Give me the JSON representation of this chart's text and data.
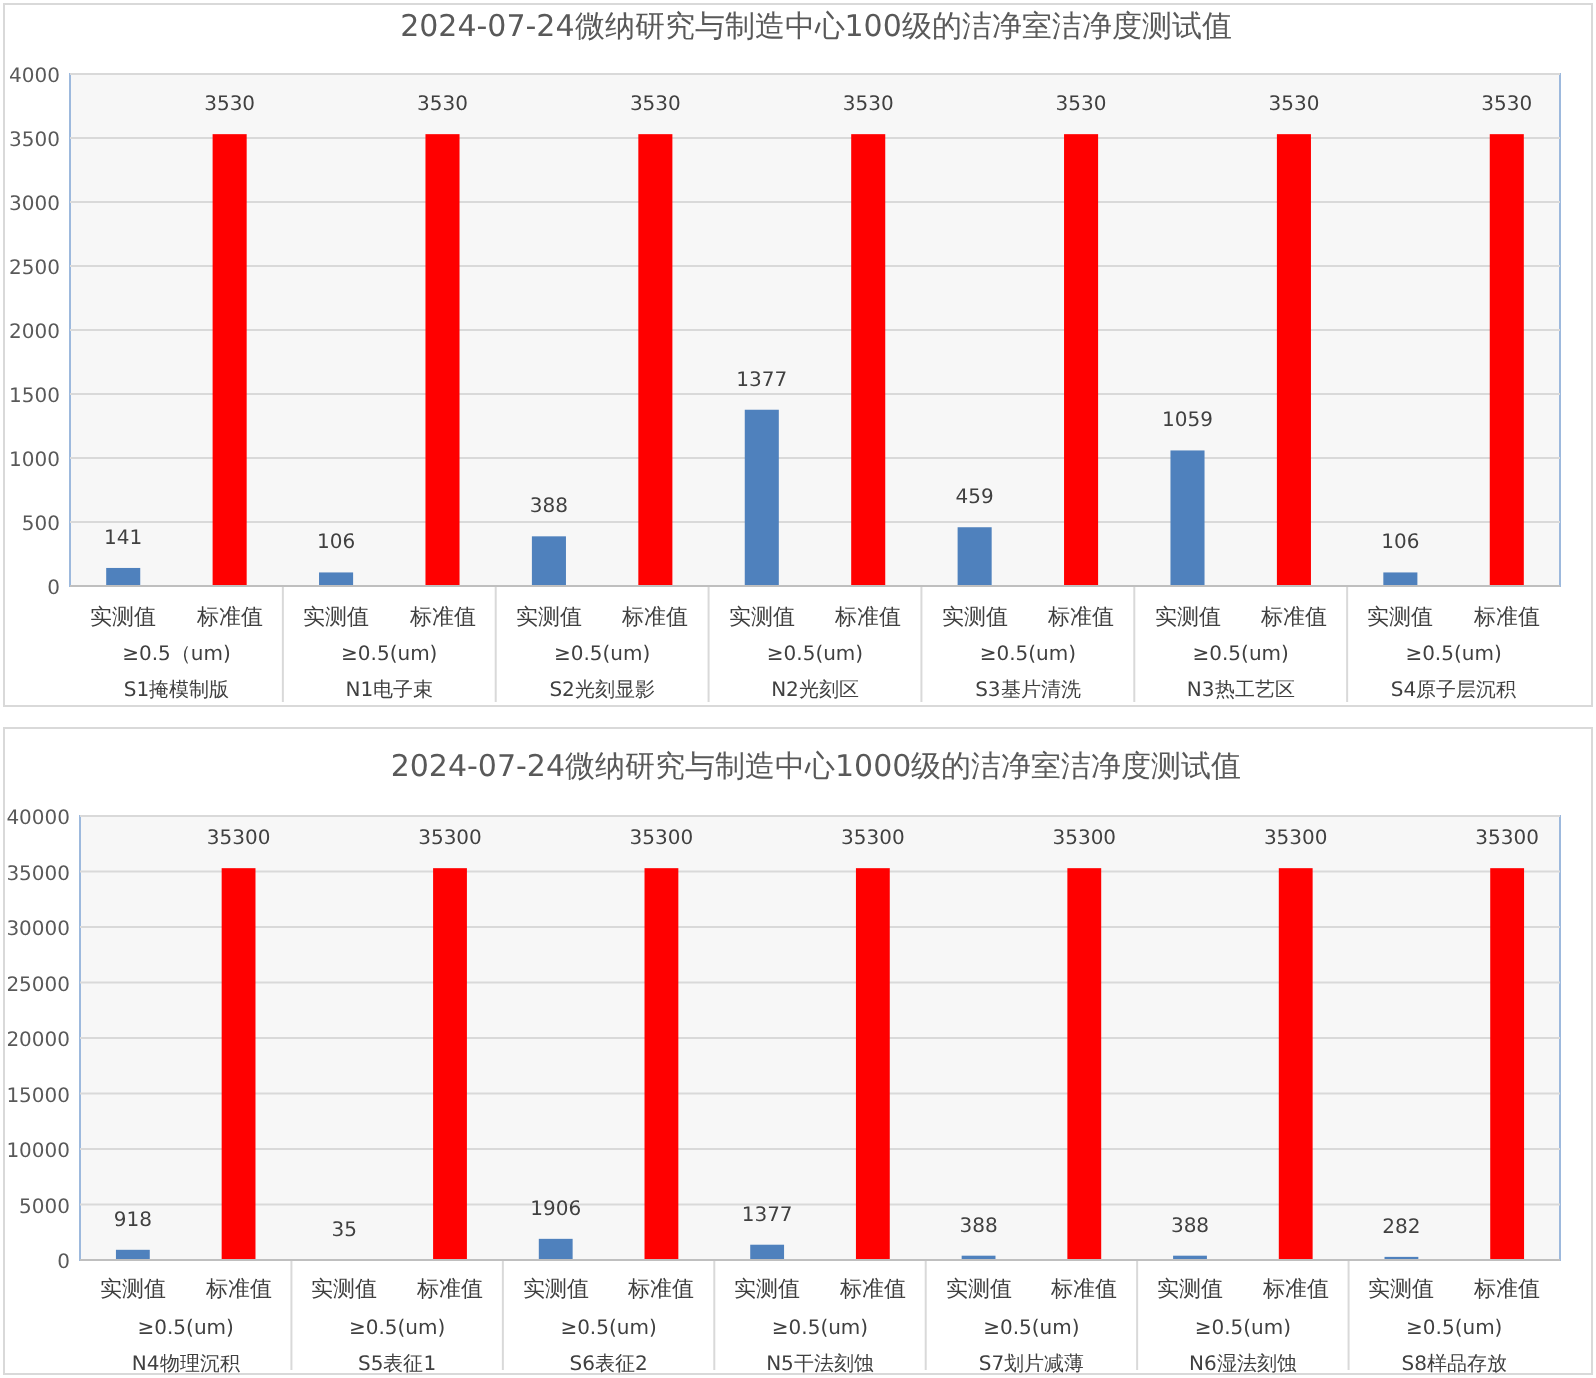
{
  "chart_data": [
    {
      "type": "bar",
      "title": "2024-07-24微纳研究与制造中心100级的洁净室洁净度测试值",
      "categories": [
        "S1掩模制版",
        "N1电子束",
        "S2光刻显影",
        "N2光刻区",
        "S3基片清洗",
        "N3热工艺区",
        "S4原子层沉积"
      ],
      "series": [
        {
          "name": "实测值",
          "color": "#4f81bd",
          "values": [
            141,
            106,
            388,
            1377,
            459,
            1059,
            106
          ]
        },
        {
          "name": "标准值",
          "color": "#ff0000",
          "values": [
            3530,
            3530,
            3530,
            3530,
            3530,
            3530,
            3530
          ]
        }
      ],
      "annotations": [
        "≥0.5（um)",
        "≥0.5(um)",
        "≥0.5(um)",
        "≥0.5(um)",
        "≥0.5(um)",
        "≥0.5(um)",
        "≥0.5(um)"
      ],
      "ylim": [
        0,
        4000
      ],
      "yticks": [
        0,
        500,
        1000,
        1500,
        2000,
        2500,
        3000,
        3500,
        4000
      ],
      "grid": "y",
      "data_labels": true,
      "legend": false
    },
    {
      "type": "bar",
      "title": "2024-07-24微纳研究与制造中心1000级的洁净室洁净度测试值",
      "categories": [
        "N4物理沉积",
        "S5表征1",
        "S6表征2",
        "N5干法刻蚀",
        "S7划片减薄",
        "N6湿法刻蚀",
        "S8样品存放"
      ],
      "series": [
        {
          "name": "实测值",
          "color": "#4f81bd",
          "values": [
            918,
            35,
            1906,
            1377,
            388,
            388,
            282
          ]
        },
        {
          "name": "标准值",
          "color": "#ff0000",
          "values": [
            35300,
            35300,
            35300,
            35300,
            35300,
            35300,
            35300
          ]
        }
      ],
      "annotations": [
        "≥0.5(um)",
        "≥0.5(um)",
        "≥0.5(um)",
        "≥0.5(um)",
        "≥0.5(um)",
        "≥0.5(um)",
        "≥0.5(um)"
      ],
      "ylim": [
        0,
        40000
      ],
      "yticks": [
        0,
        5000,
        10000,
        15000,
        20000,
        25000,
        30000,
        35000,
        40000
      ],
      "grid": "y",
      "data_labels": true,
      "legend": false
    }
  ]
}
